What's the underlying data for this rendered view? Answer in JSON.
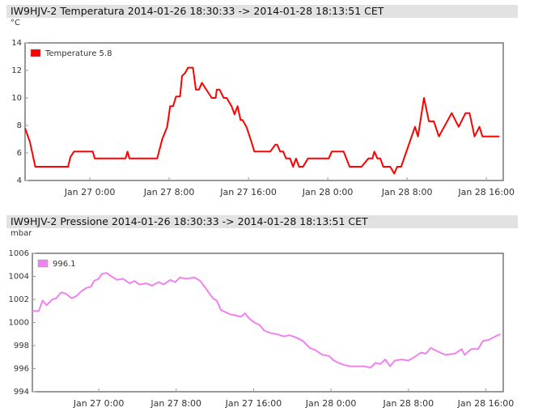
{
  "chart_data": [
    {
      "type": "line",
      "title": "IW9HJV-2 Temperatura 2014-01-26 18:30:33 -> 2014-01-28 18:13:51 CET",
      "y_label": "°C",
      "x": [
        -6.53,
        -6.04,
        -5.5,
        -2.2,
        -1.96,
        -1.6,
        0.3,
        0.5,
        3.6,
        3.8,
        4.0,
        6.8,
        7.3,
        7.8,
        8.1,
        8.4,
        8.7,
        9.1,
        9.3,
        9.6,
        9.9,
        10.4,
        10.7,
        11.0,
        11.3,
        12.3,
        12.7,
        12.8,
        13.1,
        13.5,
        13.8,
        14.3,
        14.6,
        14.9,
        15.2,
        15.4,
        15.8,
        16.3,
        16.6,
        18.2,
        18.7,
        18.9,
        19.2,
        19.5,
        19.8,
        20.2,
        20.5,
        20.8,
        21.1,
        21.5,
        22.0,
        24.1,
        24.4,
        25.6,
        26.2,
        27.4,
        28.1,
        28.5,
        28.7,
        29.0,
        29.3,
        29.6,
        30.3,
        30.7,
        31.0,
        31.4,
        32.8,
        33.1,
        33.7,
        34.2,
        34.7,
        35.2,
        36.5,
        37.2,
        37.9,
        38.3,
        38.8,
        39.3,
        39.6,
        41.3
      ],
      "series": [
        {
          "name": "Temperature 5.8",
          "color": "#ff0000",
          "values": [
            7.8,
            6.8,
            5.0,
            5.0,
            5.7,
            6.1,
            6.1,
            5.6,
            5.6,
            6.1,
            5.6,
            5.6,
            7.0,
            7.9,
            9.4,
            9.4,
            10.1,
            10.1,
            11.6,
            11.8,
            12.2,
            12.2,
            10.6,
            10.6,
            11.1,
            10.0,
            10.0,
            10.6,
            10.6,
            10.0,
            10.0,
            9.4,
            8.8,
            9.4,
            8.4,
            8.4,
            7.9,
            6.8,
            6.1,
            6.1,
            6.6,
            6.6,
            6.1,
            6.1,
            5.6,
            5.6,
            5.0,
            5.6,
            5.0,
            5.0,
            5.6,
            5.6,
            6.1,
            6.1,
            5.0,
            5.0,
            5.6,
            5.6,
            6.1,
            5.6,
            5.6,
            5.0,
            5.0,
            4.5,
            5.0,
            5.0,
            7.9,
            7.2,
            10.0,
            8.3,
            8.3,
            7.2,
            8.9,
            7.9,
            8.9,
            8.9,
            7.2,
            7.9,
            7.2,
            7.2
          ]
        }
      ],
      "xlim": [
        -6.53,
        41.7
      ],
      "ylim": [
        4,
        14
      ],
      "xticks": [
        {
          "value": 0,
          "label": "Jan 27 0:00"
        },
        {
          "value": 8,
          "label": "Jan 27 8:00"
        },
        {
          "value": 16,
          "label": "Jan 27 16:00"
        },
        {
          "value": 24,
          "label": "Jan 28 0:00"
        },
        {
          "value": 32,
          "label": "Jan 28 8:00"
        },
        {
          "value": 40,
          "label": "Jan 28 16:00"
        }
      ],
      "yticks": [
        4,
        6,
        8,
        10,
        12,
        14
      ],
      "grid": false,
      "legend": "top-left"
    },
    {
      "type": "line",
      "title": "IW9HJV-2 Pressione 2014-01-26 18:30:33 -> 2014-01-28 18:13:51 CET",
      "y_label": "mbar",
      "x": [
        -6.86,
        -6.2,
        -5.8,
        -5.4,
        -4.8,
        -4.4,
        -3.9,
        -3.4,
        -2.8,
        -2.3,
        -1.8,
        -1.3,
        -0.8,
        -0.5,
        0.0,
        0.3,
        0.8,
        1.3,
        1.9,
        2.5,
        3.2,
        3.7,
        4.2,
        4.9,
        5.5,
        6.2,
        6.7,
        7.4,
        7.9,
        8.4,
        9.0,
        9.9,
        10.5,
        11.2,
        11.8,
        12.2,
        12.6,
        13.1,
        13.6,
        14.2,
        14.7,
        15.1,
        15.6,
        16.1,
        16.6,
        17.1,
        17.7,
        18.4,
        19.1,
        19.7,
        20.4,
        21.1,
        21.8,
        22.4,
        23.1,
        23.8,
        24.3,
        24.8,
        25.4,
        26.1,
        26.8,
        27.4,
        28.1,
        28.6,
        29.1,
        29.6,
        30.1,
        30.6,
        31.3,
        32.0,
        32.6,
        33.3,
        33.8,
        34.3,
        35.0,
        35.8,
        36.8,
        37.5,
        37.8,
        38.5,
        39.2,
        39.7,
        40.3,
        41.0,
        41.5
      ],
      "series": [
        {
          "name": "996.1",
          "color": "#ee82ee",
          "values": [
            1001.0,
            1001.0,
            1001.9,
            1001.5,
            1002.0,
            1002.1,
            1002.6,
            1002.5,
            1002.1,
            1002.3,
            1002.7,
            1003.0,
            1003.1,
            1003.6,
            1003.8,
            1004.2,
            1004.3,
            1004.0,
            1003.7,
            1003.8,
            1003.4,
            1003.6,
            1003.3,
            1003.4,
            1003.2,
            1003.5,
            1003.3,
            1003.7,
            1003.5,
            1003.9,
            1003.8,
            1003.9,
            1003.6,
            1002.8,
            1002.1,
            1001.9,
            1001.1,
            1000.9,
            1000.7,
            1000.6,
            1000.5,
            1000.8,
            1000.3,
            1000.0,
            999.8,
            999.3,
            999.1,
            999.0,
            998.8,
            998.9,
            998.7,
            998.4,
            997.8,
            997.6,
            997.2,
            997.1,
            996.7,
            996.5,
            996.3,
            996.2,
            996.2,
            996.2,
            996.1,
            996.5,
            996.4,
            996.8,
            996.2,
            996.7,
            996.8,
            996.7,
            997.0,
            997.4,
            997.3,
            997.8,
            997.5,
            997.2,
            997.3,
            997.7,
            997.2,
            997.7,
            997.7,
            998.4,
            998.5,
            998.8,
            999.0
          ]
        }
      ],
      "xlim": [
        -6.86,
        41.8
      ],
      "ylim": [
        994,
        1006
      ],
      "xticks": [
        {
          "value": 0,
          "label": "Jan 27 0:00"
        },
        {
          "value": 8,
          "label": "Jan 27 8:00"
        },
        {
          "value": 16,
          "label": "Jan 27 16:00"
        },
        {
          "value": 24,
          "label": "Jan 28 0:00"
        },
        {
          "value": 32,
          "label": "Jan 28 8:00"
        },
        {
          "value": 40,
          "label": "Jan 28 16:00"
        }
      ],
      "yticks": [
        994,
        996,
        998,
        1000,
        1002,
        1004,
        1006
      ],
      "grid": false,
      "legend": "top-left"
    }
  ]
}
